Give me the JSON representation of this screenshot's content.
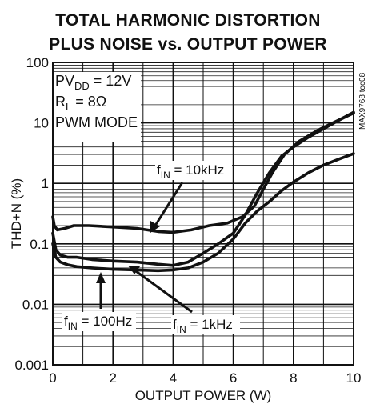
{
  "chart_data": {
    "type": "line",
    "title_line1": "TOTAL HARMONIC DISTORTION",
    "title_line2": "PLUS NOISE vs. OUTPUT POWER",
    "xlabel": "OUTPUT POWER (W)",
    "ylabel": "THD+N (%)",
    "xlim": [
      0,
      10
    ],
    "ylim": [
      0.001,
      100
    ],
    "yscale": "log",
    "grid": true,
    "x_ticks": [
      "0",
      "2",
      "4",
      "6",
      "8",
      "10"
    ],
    "y_ticks": [
      "0.001",
      "0.01",
      "0.1",
      "1",
      "10",
      "100"
    ],
    "side_id": "MAX9768 toc08",
    "conditions": [
      {
        "main": "PV",
        "sub": "DD",
        "rest": " = 12V"
      },
      {
        "main": "R",
        "sub": "L",
        "rest": " = 8Ω"
      },
      {
        "main": "PWM MODE",
        "sub": "",
        "rest": ""
      }
    ],
    "series": [
      {
        "name": "10kHz",
        "x": [
          0.0,
          0.05,
          0.15,
          0.4,
          0.7,
          1.2,
          2.0,
          2.8,
          3.5,
          4.0,
          4.6,
          5.2,
          5.8,
          6.3,
          6.7,
          7.0,
          7.3,
          7.7,
          8.2,
          8.8,
          9.4,
          10.0
        ],
        "y": [
          0.28,
          0.2,
          0.17,
          0.18,
          0.2,
          0.2,
          0.19,
          0.18,
          0.16,
          0.155,
          0.17,
          0.2,
          0.22,
          0.28,
          0.42,
          0.8,
          1.5,
          3.0,
          5.0,
          7.5,
          10.5,
          14.5
        ]
      },
      {
        "name": "1kHz",
        "x": [
          0.0,
          0.1,
          0.25,
          0.5,
          0.8,
          1.3,
          2.0,
          2.8,
          3.5,
          4.0,
          4.5,
          5.0,
          5.5,
          6.0,
          6.4,
          6.8,
          7.2,
          7.6,
          8.0,
          8.5,
          9.0,
          9.5,
          10.0
        ],
        "y": [
          0.15,
          0.08,
          0.065,
          0.06,
          0.06,
          0.055,
          0.052,
          0.05,
          0.046,
          0.044,
          0.05,
          0.07,
          0.1,
          0.15,
          0.3,
          0.7,
          1.5,
          2.8,
          4.0,
          5.8,
          8.0,
          11.0,
          15.0
        ]
      },
      {
        "name": "100Hz",
        "x": [
          0.0,
          0.1,
          0.25,
          0.5,
          0.8,
          1.3,
          2.0,
          2.8,
          3.5,
          4.0,
          4.5,
          5.0,
          5.5,
          6.0,
          6.4,
          6.8,
          7.2,
          7.6,
          8.0,
          8.5,
          9.0,
          9.5,
          10.0
        ],
        "y": [
          0.1,
          0.06,
          0.05,
          0.045,
          0.042,
          0.04,
          0.038,
          0.037,
          0.036,
          0.037,
          0.04,
          0.05,
          0.07,
          0.12,
          0.22,
          0.35,
          0.5,
          0.75,
          1.05,
          1.5,
          2.0,
          2.5,
          3.1
        ]
      }
    ],
    "annotations": [
      {
        "main": "f",
        "sub": "IN",
        "rest": " = 10kHz"
      },
      {
        "main": "f",
        "sub": "IN",
        "rest": " = 100Hz"
      },
      {
        "main": "f",
        "sub": "IN",
        "rest": " = 1kHz"
      }
    ]
  }
}
